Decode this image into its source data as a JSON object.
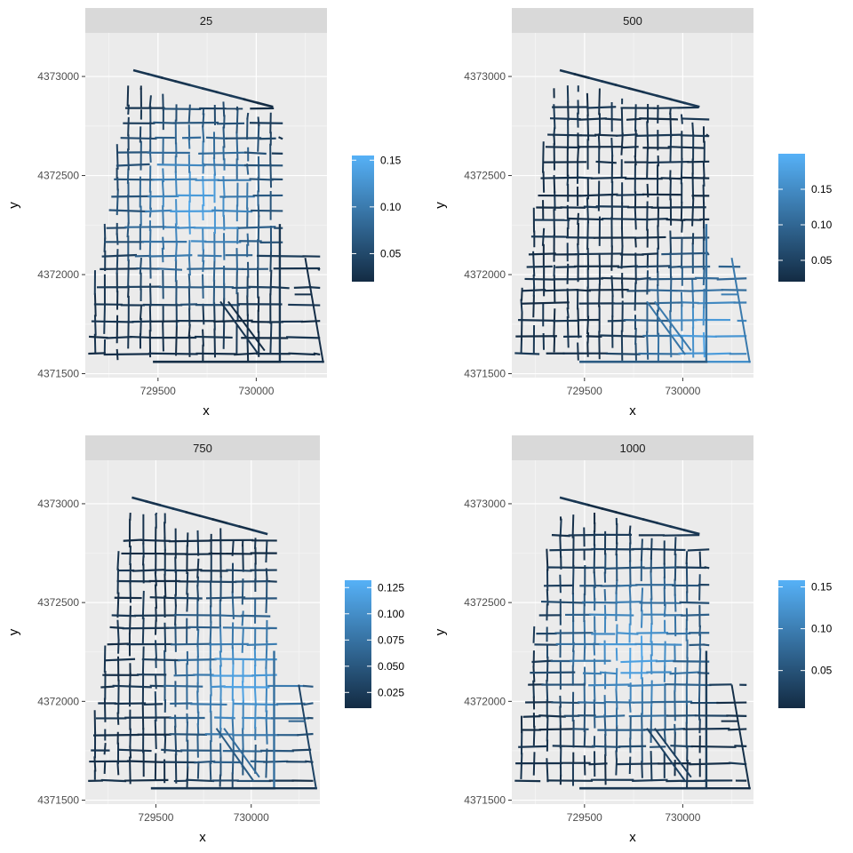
{
  "colors": {
    "panel_bg": "#ebebeb",
    "strip_bg": "#d9d9d9",
    "grid_major": "#ffffff",
    "grid_minor": "#f5f5f5",
    "low": "#132b43",
    "high": "#56b1f7",
    "tick_text": "#4d4d4d"
  },
  "chart_data": [
    {
      "type": "line",
      "facet": "25",
      "xlabel": "x",
      "ylabel": "y",
      "xlim": [
        729130,
        730360
      ],
      "ylim": [
        4371480,
        4373220
      ],
      "x_ticks": [
        729500,
        730000
      ],
      "y_ticks": [
        4371500,
        4372000,
        4372500,
        4373000
      ],
      "x_tick_labels": [
        "729500",
        "730000"
      ],
      "y_tick_labels": [
        "4371500",
        "4372000",
        "4372500",
        "4373000"
      ],
      "legend": {
        "range": [
          0.02,
          0.155
        ],
        "breaks": [
          0.05,
          0.1,
          0.15
        ],
        "labels": [
          "0.05",
          "0.10",
          "0.15"
        ],
        "position": "right"
      },
      "hotspot": {
        "x": 729700,
        "y": 4372350
      }
    },
    {
      "type": "line",
      "facet": "500",
      "xlabel": "x",
      "ylabel": "y",
      "xlim": [
        729130,
        730360
      ],
      "ylim": [
        4371480,
        4373220
      ],
      "x_ticks": [
        729500,
        730000
      ],
      "y_ticks": [
        4371500,
        4372000,
        4372500,
        4373000
      ],
      "x_tick_labels": [
        "729500",
        "730000"
      ],
      "y_tick_labels": [
        "4371500",
        "4372000",
        "4372500",
        "4373000"
      ],
      "legend": {
        "range": [
          0.02,
          0.2
        ],
        "breaks": [
          0.05,
          0.1,
          0.15
        ],
        "labels": [
          "0.05",
          "0.10",
          "0.15"
        ],
        "position": "right"
      },
      "hotspot": {
        "x": 730150,
        "y": 4371650
      }
    },
    {
      "type": "line",
      "facet": "750",
      "xlabel": "x",
      "ylabel": "y",
      "xlim": [
        729130,
        730360
      ],
      "ylim": [
        4371480,
        4373220
      ],
      "x_ticks": [
        729500,
        730000
      ],
      "y_ticks": [
        4371500,
        4372000,
        4372500,
        4373000
      ],
      "x_tick_labels": [
        "729500",
        "730000"
      ],
      "y_tick_labels": [
        "4371500",
        "4372000",
        "4372500",
        "4373000"
      ],
      "legend": {
        "range": [
          0.01,
          0.132
        ],
        "breaks": [
          0.025,
          0.05,
          0.075,
          0.1,
          0.125
        ],
        "labels": [
          "0.025",
          "0.050",
          "0.075",
          "0.100",
          "0.125"
        ],
        "position": "right"
      },
      "hotspot": {
        "x": 729950,
        "y": 4372100
      }
    },
    {
      "type": "line",
      "facet": "1000",
      "xlabel": "x",
      "ylabel": "y",
      "xlim": [
        729130,
        730360
      ],
      "ylim": [
        4371480,
        4373220
      ],
      "x_ticks": [
        729500,
        730000
      ],
      "y_ticks": [
        4371500,
        4372000,
        4372500,
        4373000
      ],
      "x_tick_labels": [
        "729500",
        "730000"
      ],
      "y_tick_labels": [
        "4371500",
        "4372000",
        "4372500",
        "4373000"
      ],
      "legend": {
        "range": [
          0.005,
          0.158
        ],
        "breaks": [
          0.05,
          0.1,
          0.15
        ],
        "labels": [
          "0.05",
          "0.10",
          "0.15"
        ],
        "position": "right"
      },
      "hotspot": {
        "x": 729750,
        "y": 4372250
      }
    }
  ]
}
